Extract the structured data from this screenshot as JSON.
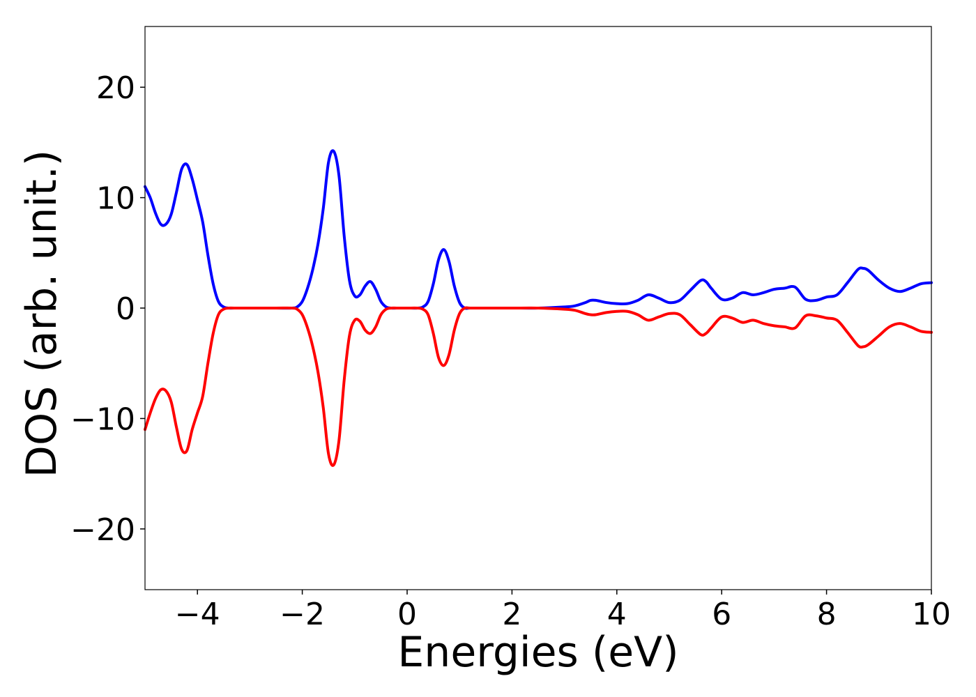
{
  "chart_data": {
    "type": "line",
    "title": "",
    "xlabel": "Energies (eV)",
    "ylabel": "DOS (arb. unit.)",
    "xlim": [
      -5,
      10
    ],
    "ylim": [
      -25.5,
      25.5
    ],
    "xticks": [
      -4,
      -2,
      0,
      2,
      4,
      6,
      8,
      10
    ],
    "xtick_labels": [
      "−4",
      "−2",
      "0",
      "2",
      "4",
      "6",
      "8",
      "10"
    ],
    "yticks": [
      -20,
      -10,
      0,
      10,
      20
    ],
    "ytick_labels": [
      "−20",
      "−10",
      "0",
      "10",
      "20"
    ],
    "grid": false,
    "legend": "none",
    "series": [
      {
        "color": "#0000ff",
        "x": [
          -5.0,
          -4.9,
          -4.8,
          -4.7,
          -4.6,
          -4.5,
          -4.4,
          -4.3,
          -4.2,
          -4.1,
          -4.0,
          -3.9,
          -3.8,
          -3.7,
          -3.6,
          -3.5,
          -3.4,
          -3.3,
          -3.0,
          -2.5,
          -2.2,
          -2.1,
          -2.0,
          -1.9,
          -1.8,
          -1.7,
          -1.6,
          -1.5,
          -1.4,
          -1.3,
          -1.2,
          -1.1,
          -1.0,
          -0.9,
          -0.8,
          -0.7,
          -0.6,
          -0.5,
          -0.4,
          -0.3,
          -0.2,
          0.0,
          0.2,
          0.3,
          0.4,
          0.5,
          0.6,
          0.7,
          0.8,
          0.9,
          1.0,
          1.1,
          1.2,
          1.5,
          2.0,
          2.5,
          3.0,
          3.2,
          3.4,
          3.5,
          3.6,
          3.8,
          4.0,
          4.2,
          4.4,
          4.6,
          4.8,
          5.0,
          5.2,
          5.4,
          5.6,
          5.7,
          5.8,
          6.0,
          6.2,
          6.4,
          6.6,
          6.8,
          7.0,
          7.2,
          7.4,
          7.6,
          7.8,
          8.0,
          8.2,
          8.4,
          8.6,
          8.7,
          8.8,
          9.0,
          9.2,
          9.4,
          9.6,
          9.8,
          10.0
        ],
        "y": [
          11.0,
          10.0,
          8.6,
          7.6,
          7.6,
          8.5,
          10.5,
          12.6,
          13.0,
          11.7,
          9.8,
          7.8,
          4.8,
          2.2,
          0.6,
          0.1,
          0.0,
          0.0,
          0.0,
          0.0,
          0.0,
          0.1,
          0.6,
          1.8,
          3.5,
          5.8,
          9.0,
          13.2,
          14.2,
          12.0,
          6.5,
          2.5,
          1.1,
          1.2,
          2.0,
          2.4,
          1.7,
          0.6,
          0.1,
          0.0,
          0.0,
          0.0,
          0.0,
          0.1,
          0.6,
          2.2,
          4.4,
          5.3,
          4.2,
          2.0,
          0.5,
          0.0,
          0.0,
          0.0,
          0.0,
          0.0,
          0.1,
          0.2,
          0.5,
          0.7,
          0.7,
          0.5,
          0.4,
          0.4,
          0.7,
          1.2,
          0.9,
          0.5,
          0.7,
          1.6,
          2.5,
          2.4,
          1.8,
          0.8,
          0.9,
          1.4,
          1.2,
          1.4,
          1.7,
          1.8,
          1.9,
          0.8,
          0.7,
          1.0,
          1.2,
          2.3,
          3.5,
          3.6,
          3.4,
          2.5,
          1.8,
          1.5,
          1.8,
          2.2,
          2.3
        ]
      },
      {
        "color": "#ff0000",
        "x": [
          -5.0,
          -4.9,
          -4.8,
          -4.7,
          -4.6,
          -4.5,
          -4.4,
          -4.3,
          -4.2,
          -4.1,
          -4.0,
          -3.9,
          -3.8,
          -3.7,
          -3.6,
          -3.5,
          -3.4,
          -3.3,
          -3.0,
          -2.5,
          -2.2,
          -2.1,
          -2.0,
          -1.9,
          -1.8,
          -1.7,
          -1.6,
          -1.5,
          -1.4,
          -1.3,
          -1.2,
          -1.1,
          -1.0,
          -0.9,
          -0.8,
          -0.7,
          -0.6,
          -0.5,
          -0.4,
          -0.3,
          -0.2,
          0.0,
          0.2,
          0.3,
          0.4,
          0.5,
          0.6,
          0.7,
          0.8,
          0.9,
          1.0,
          1.1,
          1.2,
          1.5,
          2.0,
          2.5,
          3.0,
          3.2,
          3.4,
          3.5,
          3.6,
          3.8,
          4.0,
          4.2,
          4.4,
          4.6,
          4.8,
          5.0,
          5.2,
          5.4,
          5.6,
          5.7,
          5.8,
          6.0,
          6.2,
          6.4,
          6.6,
          6.8,
          7.0,
          7.2,
          7.4,
          7.6,
          7.8,
          8.0,
          8.2,
          8.4,
          8.6,
          8.7,
          8.8,
          9.0,
          9.2,
          9.4,
          9.6,
          9.8,
          10.0
        ],
        "y": [
          -11.0,
          -9.5,
          -8.2,
          -7.4,
          -7.5,
          -8.5,
          -10.8,
          -12.8,
          -12.9,
          -11.0,
          -9.5,
          -8.0,
          -5.0,
          -2.3,
          -0.6,
          -0.1,
          0.0,
          0.0,
          0.0,
          0.0,
          0.0,
          -0.1,
          -0.6,
          -1.8,
          -3.5,
          -5.8,
          -9.0,
          -13.2,
          -14.2,
          -12.0,
          -6.5,
          -2.5,
          -1.1,
          -1.2,
          -2.0,
          -2.3,
          -1.7,
          -0.6,
          -0.1,
          0.0,
          0.0,
          0.0,
          0.0,
          -0.1,
          -0.6,
          -2.3,
          -4.5,
          -5.2,
          -4.2,
          -2.0,
          -0.5,
          0.0,
          0.0,
          0.0,
          0.0,
          0.0,
          -0.1,
          -0.2,
          -0.5,
          -0.6,
          -0.6,
          -0.4,
          -0.3,
          -0.3,
          -0.6,
          -1.1,
          -0.8,
          -0.5,
          -0.6,
          -1.5,
          -2.4,
          -2.3,
          -1.8,
          -0.8,
          -0.9,
          -1.3,
          -1.1,
          -1.4,
          -1.6,
          -1.7,
          -1.8,
          -0.7,
          -0.7,
          -0.9,
          -1.1,
          -2.2,
          -3.4,
          -3.5,
          -3.3,
          -2.5,
          -1.7,
          -1.4,
          -1.7,
          -2.1,
          -2.2
        ]
      }
    ]
  }
}
